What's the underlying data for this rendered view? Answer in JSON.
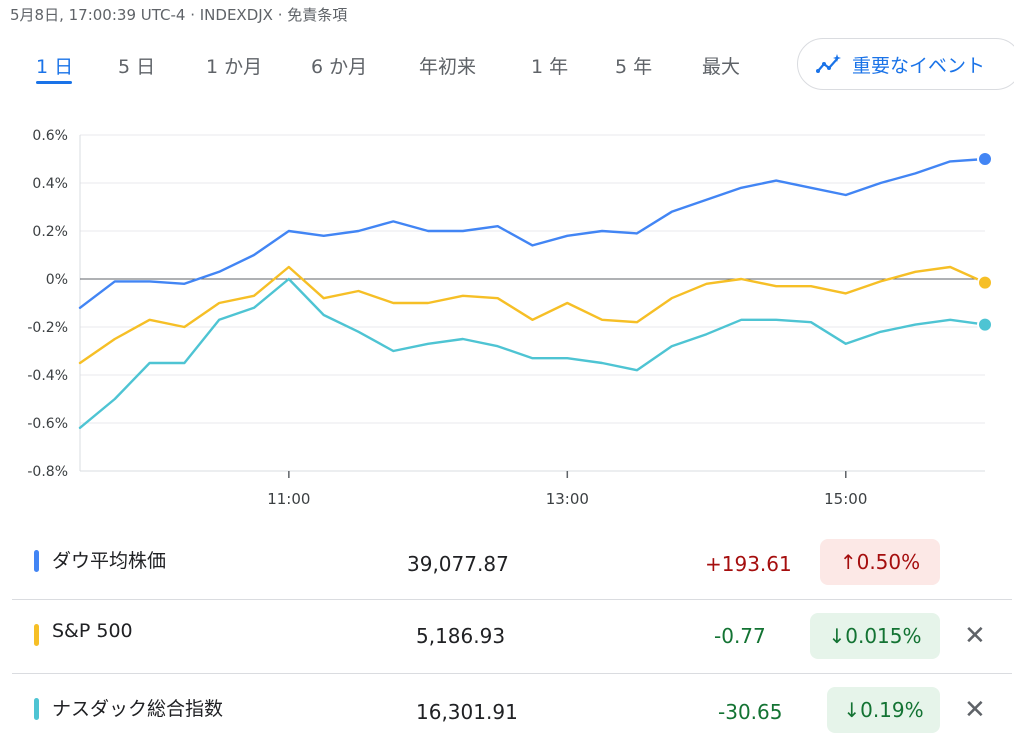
{
  "header": {
    "text": "5月8日, 17:00:39 UTC-4 · INDEXDJX · 免責条項"
  },
  "tabs": [
    {
      "label": "1 日",
      "active": true
    },
    {
      "label": "5 日"
    },
    {
      "label": "1 か月"
    },
    {
      "label": "6 か月"
    },
    {
      "label": "年初来"
    },
    {
      "label": "1 年"
    },
    {
      "label": "5 年"
    },
    {
      "label": "最大"
    }
  ],
  "events_button": {
    "label": "重要なイベント",
    "icon": "trend-sparkle-icon"
  },
  "chart_data": {
    "type": "line",
    "x_ticks": [
      "11:00",
      "13:00",
      "15:00"
    ],
    "y_ticks": [
      "0.6%",
      "0.4%",
      "0.2%",
      "0%",
      "-0.2%",
      "-0.4%",
      "-0.6%",
      "-0.8%"
    ],
    "ylim": [
      -0.8,
      0.6
    ],
    "xlim": [
      "09:30",
      "16:00"
    ],
    "baseline": 0,
    "grid": true,
    "series": [
      {
        "name": "ダウ平均株価",
        "color": "#4285f4",
        "x": [
          "09:30",
          "09:45",
          "10:00",
          "10:15",
          "10:30",
          "10:45",
          "11:00",
          "11:15",
          "11:30",
          "11:45",
          "12:00",
          "12:15",
          "12:30",
          "12:45",
          "13:00",
          "13:15",
          "13:30",
          "13:45",
          "14:00",
          "14:15",
          "14:30",
          "14:45",
          "15:00",
          "15:15",
          "15:30",
          "15:45",
          "16:00"
        ],
        "values": [
          -0.12,
          -0.01,
          -0.01,
          -0.02,
          0.03,
          0.1,
          0.2,
          0.18,
          0.2,
          0.24,
          0.2,
          0.2,
          0.22,
          0.14,
          0.18,
          0.2,
          0.19,
          0.28,
          0.33,
          0.38,
          0.41,
          0.38,
          0.35,
          0.4,
          0.44,
          0.49,
          0.5
        ]
      },
      {
        "name": "S&P 500",
        "color": "#f6bf26",
        "x": [
          "09:30",
          "09:45",
          "10:00",
          "10:15",
          "10:30",
          "10:45",
          "11:00",
          "11:15",
          "11:30",
          "11:45",
          "12:00",
          "12:15",
          "12:30",
          "12:45",
          "13:00",
          "13:15",
          "13:30",
          "13:45",
          "14:00",
          "14:15",
          "14:30",
          "14:45",
          "15:00",
          "15:15",
          "15:30",
          "15:45",
          "16:00"
        ],
        "values": [
          -0.35,
          -0.25,
          -0.17,
          -0.2,
          -0.1,
          -0.07,
          0.05,
          -0.08,
          -0.05,
          -0.1,
          -0.1,
          -0.07,
          -0.08,
          -0.17,
          -0.1,
          -0.17,
          -0.18,
          -0.08,
          -0.02,
          0,
          -0.03,
          -0.03,
          -0.06,
          -0.01,
          0.03,
          0.05,
          -0.015
        ]
      },
      {
        "name": "ナスダック総合指数",
        "color": "#4ec4d3",
        "x": [
          "09:30",
          "09:45",
          "10:00",
          "10:15",
          "10:30",
          "10:45",
          "11:00",
          "11:15",
          "11:30",
          "11:45",
          "12:00",
          "12:15",
          "12:30",
          "12:45",
          "13:00",
          "13:15",
          "13:30",
          "13:45",
          "14:00",
          "14:15",
          "14:30",
          "14:45",
          "15:00",
          "15:15",
          "15:30",
          "15:45",
          "16:00"
        ],
        "values": [
          -0.62,
          -0.5,
          -0.35,
          -0.35,
          -0.17,
          -0.12,
          0,
          -0.15,
          -0.22,
          -0.3,
          -0.27,
          -0.25,
          -0.28,
          -0.33,
          -0.33,
          -0.35,
          -0.38,
          -0.28,
          -0.23,
          -0.17,
          -0.17,
          -0.18,
          -0.27,
          -0.22,
          -0.19,
          -0.17,
          -0.19
        ]
      }
    ]
  },
  "rows": [
    {
      "name": "ダウ平均株価",
      "color": "#4285f4",
      "price": "39,077.87",
      "change": "+193.61",
      "pct": "↑0.50%",
      "direction": "up"
    },
    {
      "name": "S&P 500",
      "color": "#f6bf26",
      "price": "5,186.93",
      "change": "-0.77",
      "pct": "↓0.015%",
      "direction": "down"
    },
    {
      "name": "ナスダック総合指数",
      "color": "#4ec4d3",
      "price": "16,301.91",
      "change": "-30.65",
      "pct": "↓0.19%",
      "direction": "down"
    }
  ],
  "close_glyph": "✕"
}
